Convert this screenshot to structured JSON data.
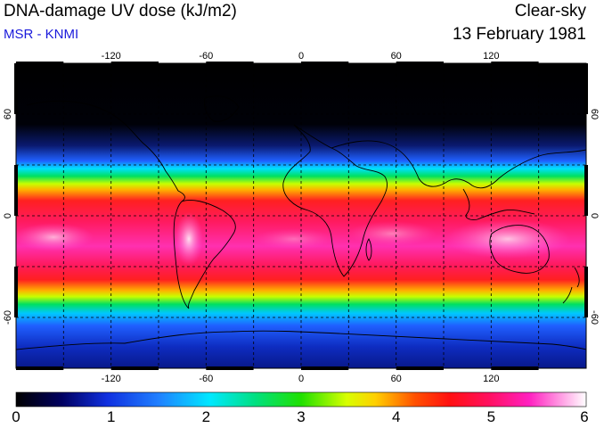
{
  "header": {
    "title": "DNA-damage UV dose (kJ/m2)",
    "source": "MSR - KNMI",
    "condition": "Clear-sky",
    "date": "13 February 1981"
  },
  "map": {
    "lon_ticks": [
      "-120",
      "-60",
      "0",
      "60",
      "120"
    ],
    "lat_ticks": [
      "60",
      "0",
      "-60"
    ],
    "projection": "equirectangular",
    "colormap": [
      "#000000",
      "#10208a",
      "#2060ff",
      "#00d8ff",
      "#00e050",
      "#c8ff00",
      "#ffd000",
      "#ff2020",
      "#ff2090",
      "#ffb0f0",
      "#ffffff"
    ]
  },
  "colorbar": {
    "labels": [
      "0",
      "1",
      "2",
      "3",
      "4",
      "5",
      "6"
    ]
  }
}
